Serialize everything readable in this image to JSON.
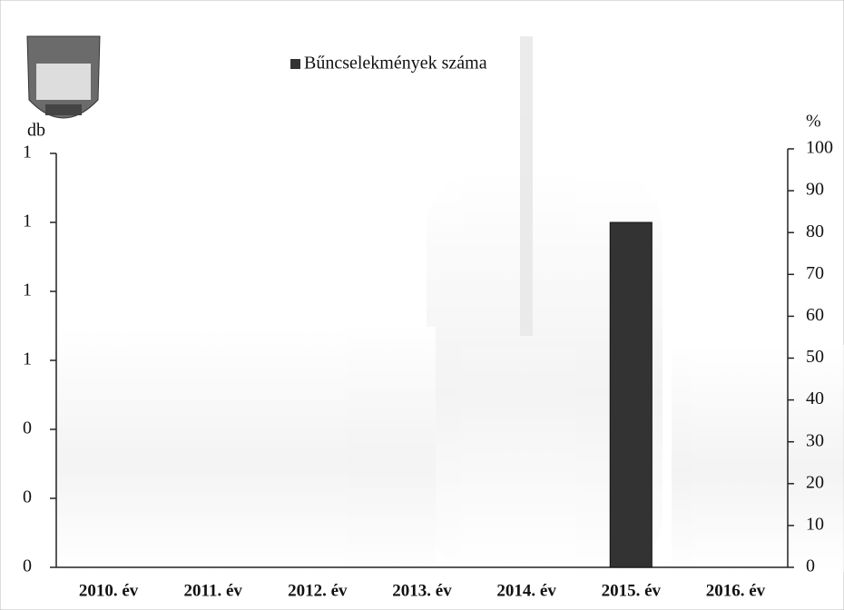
{
  "chart_data": {
    "type": "bar",
    "categories": [
      "2010. év",
      "2011. év",
      "2012. év",
      "2013. év",
      "2014. év",
      "2015. év",
      "2016. év"
    ],
    "series": [
      {
        "name": "Bűncselekmények száma",
        "color": "#333333",
        "values": [
          0,
          0,
          0,
          0,
          0,
          1,
          0
        ]
      }
    ],
    "ylabel": "db",
    "y2label": "%",
    "ylim": [
      0,
      1.2
    ],
    "yticks": [
      0,
      {
        "value": 0.2,
        "label": "0"
      },
      {
        "value": 0.4,
        "label": "0"
      },
      {
        "value": 0.6,
        "label": "1"
      },
      {
        "value": 0.8,
        "label": "1"
      },
      1,
      {
        "value": 1.2,
        "label": "1"
      }
    ],
    "y2lim": [
      0,
      100
    ],
    "y2ticks": [
      0,
      10,
      20,
      30,
      40,
      50,
      60,
      70,
      80,
      90,
      100
    ],
    "legend": "top"
  }
}
